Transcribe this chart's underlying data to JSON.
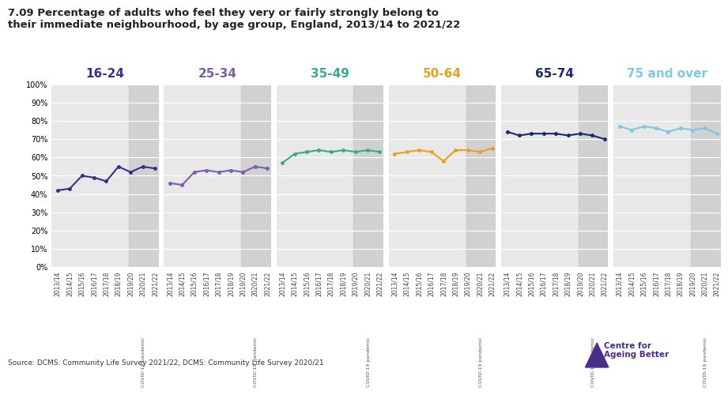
{
  "title": "7.09 Percentage of adults who feel they very or fairly strongly belong to\ntheir immediate neighbourhood, by age group, England, 2013/14 to 2021/22",
  "source": "Source: DCMS: Community Life Survey 2021/22, DCMS: Community Life Survey 2020/21",
  "background_color": "#f0f0f0",
  "panel_bg": "#e8e8e8",
  "yticks": [
    0,
    10,
    20,
    30,
    40,
    50,
    60,
    70,
    80,
    90,
    100
  ],
  "groups": [
    {
      "label": "16-24",
      "color": "#3d2b8e",
      "label_color": "#3d2b8e",
      "x_labels": [
        "2013/14",
        "2014/15",
        "2015/16",
        "2016/17",
        "2017/18",
        "2018/19",
        "2019/20",
        "2020/21",
        "2021/22"
      ],
      "values": [
        42,
        43,
        50,
        49,
        47,
        55,
        52,
        55,
        54
      ]
    },
    {
      "label": "25-34",
      "color": "#7b5ea7",
      "label_color": "#7b5ea7",
      "x_labels": [
        "2013/14",
        "2014/15",
        "2015/16",
        "2016/17",
        "2017/18",
        "2018/19",
        "2019/20",
        "2020/21",
        "2021/22"
      ],
      "values": [
        46,
        45,
        52,
        53,
        52,
        53,
        52,
        55,
        54
      ]
    },
    {
      "label": "35-49",
      "color": "#3aaa8e",
      "label_color": "#3aaa8e",
      "x_labels": [
        "2013/14",
        "2014/15",
        "2015/16",
        "2016/17",
        "2017/18",
        "2018/19",
        "2019/20",
        "2020/21",
        "2021/22"
      ],
      "values": [
        57,
        62,
        63,
        64,
        63,
        64,
        63,
        64,
        63
      ]
    },
    {
      "label": "50-64",
      "color": "#e8a020",
      "label_color": "#e8a020",
      "x_labels": [
        "2013/14",
        "2014/15",
        "2015/16",
        "2016/17",
        "2017/18",
        "2018/19",
        "2019/20",
        "2020/21",
        "2021/22"
      ],
      "values": [
        62,
        63,
        64,
        63,
        58,
        64,
        64,
        63,
        65
      ]
    },
    {
      "label": "65-74",
      "color": "#1a2a6c",
      "label_color": "#1a2a6c",
      "x_labels": [
        "2013/14",
        "2014/15",
        "2015/16",
        "2016/17",
        "2017/18",
        "2018/19",
        "2019/20",
        "2020/21",
        "2021/22"
      ],
      "values": [
        74,
        72,
        73,
        73,
        73,
        72,
        73,
        72,
        70
      ]
    },
    {
      "label": "75 and over",
      "color": "#7ec8e3",
      "label_color": "#7ec8e3",
      "x_labels": [
        "2013/14",
        "2014/15",
        "2015/16",
        "2016/17",
        "2017/18",
        "2018/19",
        "2019/20",
        "2020/21",
        "2021/22"
      ],
      "values": [
        77,
        75,
        77,
        76,
        74,
        76,
        75,
        76,
        73
      ]
    }
  ],
  "covid_band_start": "2019/20",
  "covid_band_end": "2021/22",
  "covid_label": "COVID-19 pandemic",
  "ylim": [
    0,
    100
  ],
  "logo_color": "#4a2d8a"
}
